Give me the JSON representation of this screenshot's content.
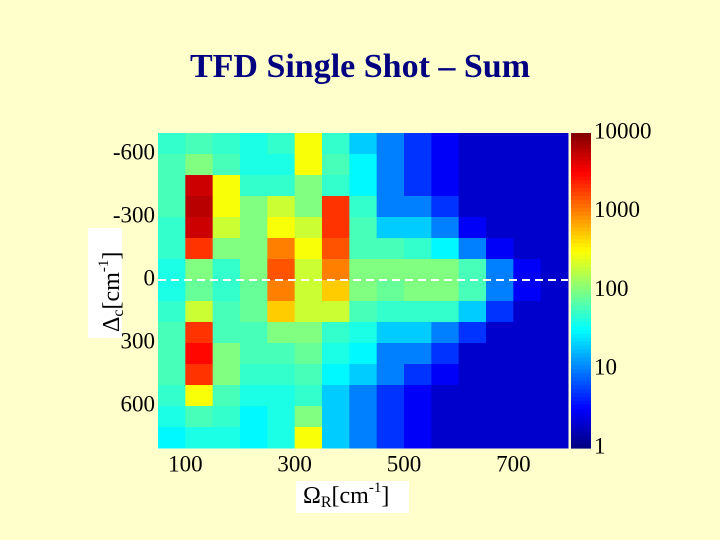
{
  "chart_data": {
    "type": "heatmap",
    "title": "TFD Single Shot – Sum",
    "xlabel": {
      "symbol": "Ω",
      "subscript": "R",
      "unit": "[cm",
      "exponent": "-1",
      "close": "]"
    },
    "ylabel": {
      "symbol": "Δ",
      "subscript": "c",
      "unit": "[cm",
      "exponent": "-1",
      "close": "]"
    },
    "xlim": [
      50,
      800
    ],
    "ylim": [
      -700,
      800
    ],
    "y_reversed": true,
    "xticks": [
      100,
      300,
      500,
      700
    ],
    "yticks": [
      -600,
      -300,
      0,
      300,
      600
    ],
    "colormap": "jet",
    "clim": [
      1,
      10000
    ],
    "cticks": [
      1,
      10,
      100,
      1000,
      10000
    ],
    "color_scale": "log",
    "reference_line": 0,
    "x": [
      75,
      125,
      175,
      225,
      275,
      325,
      375,
      425,
      475,
      525,
      575,
      625,
      675,
      725,
      775
    ],
    "y": [
      -650,
      -550,
      -450,
      -350,
      -250,
      -150,
      -50,
      50,
      150,
      250,
      350,
      450,
      550,
      650,
      750
    ],
    "z": [
      [
        50,
        60,
        50,
        40,
        50,
        300,
        50,
        20,
        10,
        5,
        3,
        2,
        2,
        2,
        2
      ],
      [
        60,
        100,
        60,
        40,
        40,
        300,
        60,
        30,
        10,
        5,
        3,
        2,
        2,
        2,
        2
      ],
      [
        60,
        5000,
        300,
        50,
        50,
        100,
        50,
        30,
        10,
        5,
        3,
        2,
        2,
        2,
        2
      ],
      [
        60,
        6000,
        300,
        100,
        200,
        100,
        2000,
        50,
        10,
        10,
        5,
        2,
        2,
        2,
        2
      ],
      [
        50,
        5000,
        200,
        100,
        300,
        200,
        2000,
        60,
        20,
        20,
        10,
        3,
        2,
        2,
        2
      ],
      [
        50,
        2000,
        100,
        100,
        1000,
        300,
        1500,
        60,
        60,
        50,
        30,
        10,
        3,
        2,
        2
      ],
      [
        40,
        100,
        50,
        100,
        1500,
        200,
        1000,
        100,
        100,
        100,
        100,
        60,
        10,
        3,
        2
      ],
      [
        40,
        80,
        50,
        80,
        1000,
        200,
        500,
        100,
        80,
        100,
        100,
        60,
        10,
        3,
        2
      ],
      [
        50,
        200,
        60,
        80,
        500,
        200,
        200,
        60,
        50,
        50,
        50,
        20,
        5,
        2,
        2
      ],
      [
        60,
        2000,
        60,
        60,
        100,
        100,
        50,
        40,
        20,
        20,
        10,
        5,
        2,
        2,
        2
      ],
      [
        60,
        3000,
        100,
        60,
        60,
        80,
        40,
        30,
        10,
        10,
        5,
        2,
        2,
        2,
        2
      ],
      [
        60,
        2000,
        100,
        50,
        50,
        60,
        30,
        20,
        10,
        5,
        3,
        2,
        2,
        2,
        2
      ],
      [
        50,
        300,
        60,
        40,
        40,
        50,
        20,
        10,
        5,
        3,
        2,
        2,
        2,
        2,
        2
      ],
      [
        40,
        60,
        50,
        30,
        40,
        100,
        20,
        10,
        5,
        3,
        2,
        2,
        2,
        2,
        2
      ],
      [
        30,
        40,
        40,
        30,
        40,
        300,
        20,
        10,
        5,
        3,
        2,
        2,
        2,
        2,
        2
      ]
    ]
  }
}
